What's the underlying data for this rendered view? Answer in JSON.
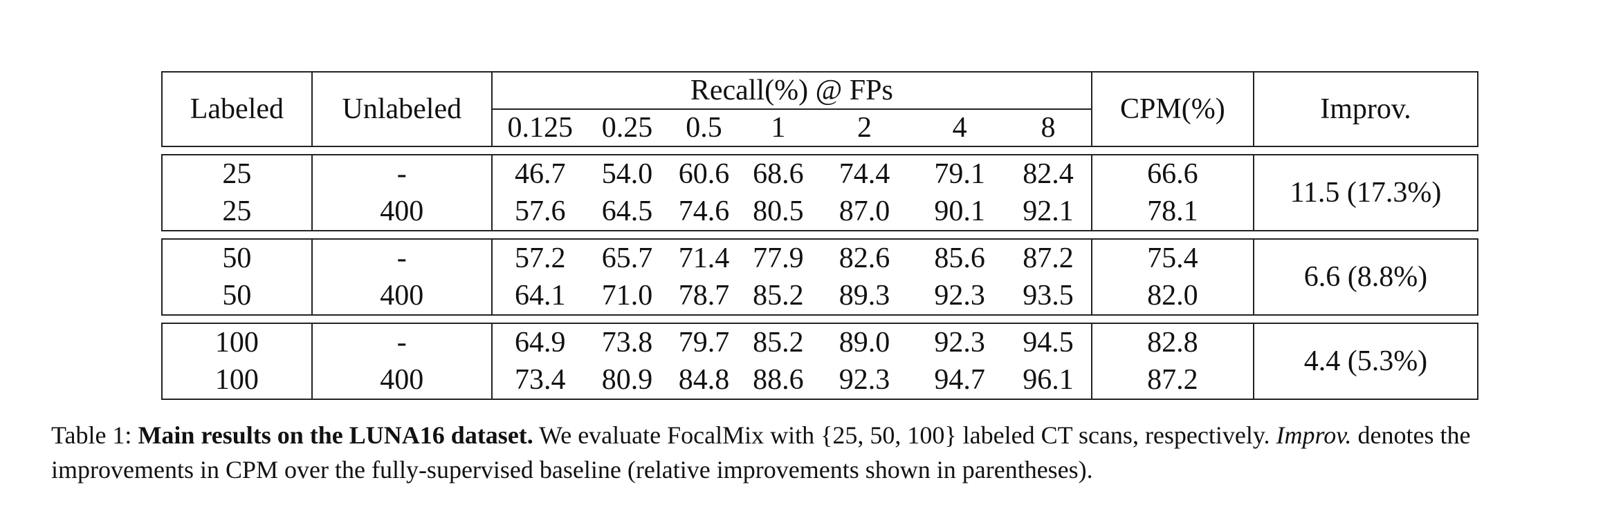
{
  "table": {
    "headers": {
      "labeled": "Labeled",
      "unlabeled": "Unlabeled",
      "recall_group": "Recall(%) @ FPs",
      "fps": [
        "0.125",
        "0.25",
        "0.5",
        "1",
        "2",
        "4",
        "8"
      ],
      "cpm": "CPM(%)",
      "improv": "Improv."
    },
    "groups": [
      {
        "rows": [
          {
            "labeled": "25",
            "unlabeled": "-",
            "recall": [
              "46.7",
              "54.0",
              "60.6",
              "68.6",
              "74.4",
              "79.1",
              "82.4"
            ],
            "cpm": "66.6"
          },
          {
            "labeled": "25",
            "unlabeled": "400",
            "recall": [
              "57.6",
              "64.5",
              "74.6",
              "80.5",
              "87.0",
              "90.1",
              "92.1"
            ],
            "cpm": "78.1"
          }
        ],
        "improv": "11.5 (17.3%)"
      },
      {
        "rows": [
          {
            "labeled": "50",
            "unlabeled": "-",
            "recall": [
              "57.2",
              "65.7",
              "71.4",
              "77.9",
              "82.6",
              "85.6",
              "87.2"
            ],
            "cpm": "75.4"
          },
          {
            "labeled": "50",
            "unlabeled": "400",
            "recall": [
              "64.1",
              "71.0",
              "78.7",
              "85.2",
              "89.3",
              "92.3",
              "93.5"
            ],
            "cpm": "82.0"
          }
        ],
        "improv": "6.6 (8.8%)"
      },
      {
        "rows": [
          {
            "labeled": "100",
            "unlabeled": "-",
            "recall": [
              "64.9",
              "73.8",
              "79.7",
              "85.2",
              "89.0",
              "92.3",
              "94.5"
            ],
            "cpm": "82.8"
          },
          {
            "labeled": "100",
            "unlabeled": "400",
            "recall": [
              "73.4",
              "80.9",
              "84.8",
              "88.6",
              "92.3",
              "94.7",
              "96.1"
            ],
            "cpm": "87.2"
          }
        ],
        "improv": "4.4 (5.3%)"
      }
    ]
  },
  "caption": {
    "prefix": "Table 1: ",
    "bold_title": "Main results on the LUNA16 dataset.",
    "text1": " We evaluate FocalMix with {25, 50, 100} labeled CT scans, respectively. ",
    "italic": "Improv.",
    "text2": " denotes the improvements in CPM over the fully-supervised baseline (relative improvements shown in parentheses)."
  }
}
